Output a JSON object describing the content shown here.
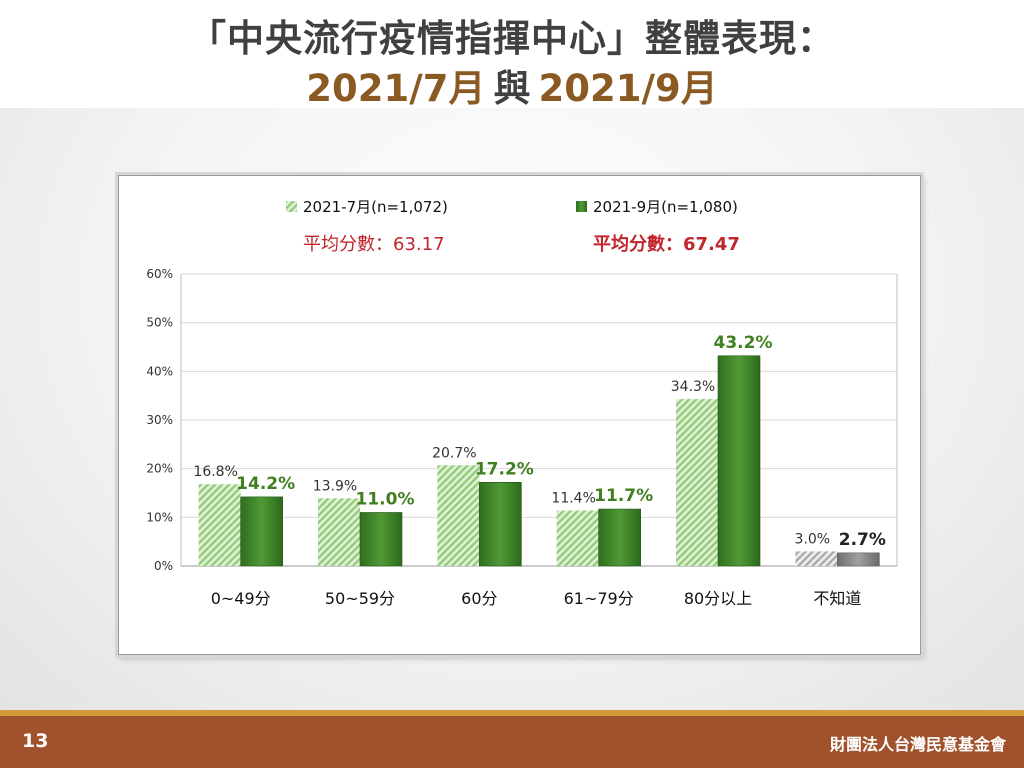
{
  "slide": {
    "title_line1": "「中央流行疫情指揮中心」整體表現：",
    "title_line2_a": "2021/7月",
    "title_line2_mid": "與",
    "title_line2_b": "2021/9月",
    "page_number": "13",
    "organization": "財團法人台灣民意基金會"
  },
  "chart_data": {
    "type": "bar",
    "categories": [
      "0~49分",
      "50~59分",
      "60分",
      "61~79分",
      "80分以上",
      "不知道"
    ],
    "series": [
      {
        "name": "2021-7月(n=1,072)",
        "values": [
          16.8,
          13.9,
          20.7,
          11.4,
          34.3,
          3.0
        ],
        "labels": [
          "16.8%",
          "13.9%",
          "20.7%",
          "11.4%",
          "34.3%",
          "3.0%"
        ],
        "color": "#9fd38a"
      },
      {
        "name": "2021-9月(n=1,080)",
        "values": [
          14.2,
          11.0,
          17.2,
          11.7,
          43.2,
          2.7
        ],
        "labels": [
          "14.2%",
          "11.0%",
          "17.2%",
          "11.7%",
          "43.2%",
          "2.7%"
        ],
        "color": "#3f8a2a"
      }
    ],
    "averages": [
      {
        "text": "平均分數：63.17",
        "color": "#c0262c"
      },
      {
        "text": "平均分數：67.47",
        "color": "#c0262c"
      }
    ],
    "yticks": [
      "0%",
      "10%",
      "20%",
      "30%",
      "40%",
      "50%",
      "60%"
    ],
    "ylim": [
      0,
      60
    ],
    "grid": true,
    "legend_position": "top",
    "special_colors": {
      "dont_know_series1": "#b8b8b8",
      "dont_know_series2": "#8a8a8a",
      "label_series2": "#3f7f1f",
      "label_series2_dont_know": "#222222"
    }
  }
}
